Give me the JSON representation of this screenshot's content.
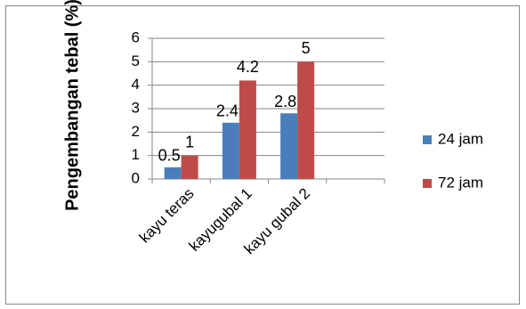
{
  "chart_data": {
    "type": "bar",
    "title": "",
    "xlabel": "",
    "ylabel": "Pengembangan tebal (%)",
    "categories": [
      "kayu teras",
      "kayugubal 1",
      "kayu gubal 2"
    ],
    "series": [
      {
        "name": "24 jam",
        "values": [
          0.5,
          2.4,
          2.8
        ],
        "color": "#4a7ebb",
        "labels": [
          "0.5",
          "2.4",
          "2.8"
        ]
      },
      {
        "name": "72 jam",
        "values": [
          1,
          4.2,
          5
        ],
        "color": "#be4b48",
        "labels": [
          "1",
          "4.2",
          "5"
        ]
      }
    ],
    "ylim": [
      0,
      6
    ],
    "yticks": [
      "0",
      "1",
      "2",
      "3",
      "4",
      "5",
      "6"
    ],
    "grid": true,
    "legend_position": "right"
  }
}
